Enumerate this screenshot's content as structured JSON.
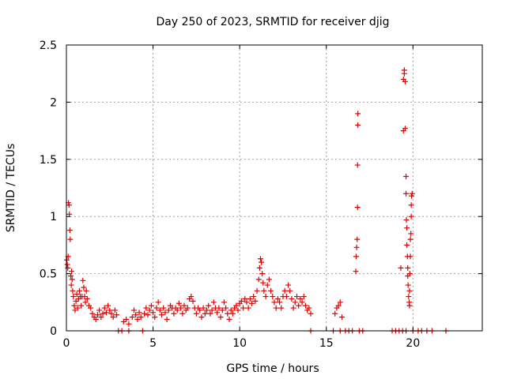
{
  "chart_data": {
    "type": "scatter",
    "title": "Day 250 of 2023, SRMTID for receiver djig",
    "xlabel": "GPS time / hours",
    "ylabel": "SRMTID / TECUs",
    "xlim": [
      0,
      24
    ],
    "ylim": [
      0,
      2.5
    ],
    "xticks": [
      0,
      5,
      10,
      15,
      20
    ],
    "xtick_labels": [
      "0",
      "5",
      "10",
      "15",
      "20"
    ],
    "yticks": [
      0,
      0.5,
      1,
      1.5,
      2,
      2.5
    ],
    "ytick_labels": [
      "0",
      "0.5",
      "1",
      "1.5",
      "2",
      "2.5"
    ],
    "grid": true,
    "marker": "+",
    "color": "#e00000",
    "series": [
      {
        "name": "SRMTID",
        "points": [
          [
            0.02,
            0.62
          ],
          [
            0.05,
            0.58
          ],
          [
            0.08,
            0.55
          ],
          [
            0.1,
            0.65
          ],
          [
            0.12,
            1.12
          ],
          [
            0.15,
            1.1
          ],
          [
            0.17,
            1.02
          ],
          [
            0.2,
            0.88
          ],
          [
            0.22,
            0.8
          ],
          [
            0.25,
            0.48
          ],
          [
            0.28,
            0.4
          ],
          [
            0.3,
            0.52
          ],
          [
            0.33,
            0.45
          ],
          [
            0.36,
            0.35
          ],
          [
            0.4,
            0.3
          ],
          [
            0.45,
            0.22
          ],
          [
            0.5,
            0.18
          ],
          [
            0.55,
            0.26
          ],
          [
            0.6,
            0.32
          ],
          [
            0.65,
            0.2
          ],
          [
            0.7,
            0.28
          ],
          [
            0.75,
            0.35
          ],
          [
            0.8,
            0.3
          ],
          [
            0.85,
            0.22
          ],
          [
            0.9,
            0.3
          ],
          [
            0.95,
            0.44
          ],
          [
            1.0,
            0.38
          ],
          [
            1.05,
            0.3
          ],
          [
            1.1,
            0.25
          ],
          [
            1.15,
            0.35
          ],
          [
            1.2,
            0.28
          ],
          [
            1.3,
            0.22
          ],
          [
            1.4,
            0.2
          ],
          [
            1.5,
            0.15
          ],
          [
            1.6,
            0.12
          ],
          [
            1.7,
            0.1
          ],
          [
            1.8,
            0.14
          ],
          [
            1.9,
            0.18
          ],
          [
            2.0,
            0.12
          ],
          [
            2.1,
            0.15
          ],
          [
            2.2,
            0.2
          ],
          [
            2.3,
            0.16
          ],
          [
            2.4,
            0.22
          ],
          [
            2.5,
            0.18
          ],
          [
            2.6,
            0.15
          ],
          [
            2.7,
            0.12
          ],
          [
            2.8,
            0.18
          ],
          [
            2.9,
            0.14
          ],
          [
            3.0,
            0.0
          ],
          [
            3.2,
            0.0
          ],
          [
            3.3,
            0.08
          ],
          [
            3.45,
            0.1
          ],
          [
            3.6,
            0.06
          ],
          [
            3.6,
            0.0
          ],
          [
            3.8,
            0.12
          ],
          [
            3.9,
            0.18
          ],
          [
            4.0,
            0.14
          ],
          [
            4.1,
            0.1
          ],
          [
            4.2,
            0.16
          ],
          [
            4.3,
            0.12
          ],
          [
            4.4,
            0.0
          ],
          [
            4.5,
            0.15
          ],
          [
            4.6,
            0.2
          ],
          [
            4.7,
            0.14
          ],
          [
            4.8,
            0.18
          ],
          [
            4.9,
            0.22
          ],
          [
            5.0,
            0.16
          ],
          [
            5.1,
            0.12
          ],
          [
            5.2,
            0.2
          ],
          [
            5.3,
            0.25
          ],
          [
            5.4,
            0.18
          ],
          [
            5.5,
            0.14
          ],
          [
            5.6,
            0.2
          ],
          [
            5.7,
            0.16
          ],
          [
            5.8,
            0.1
          ],
          [
            5.9,
            0.18
          ],
          [
            6.0,
            0.22
          ],
          [
            6.1,
            0.2
          ],
          [
            6.2,
            0.15
          ],
          [
            6.3,
            0.2
          ],
          [
            6.4,
            0.18
          ],
          [
            6.5,
            0.24
          ],
          [
            6.6,
            0.2
          ],
          [
            6.7,
            0.15
          ],
          [
            6.8,
            0.22
          ],
          [
            6.9,
            0.18
          ],
          [
            7.0,
            0.2
          ],
          [
            7.1,
            0.28
          ],
          [
            7.2,
            0.3
          ],
          [
            7.3,
            0.26
          ],
          [
            7.4,
            0.2
          ],
          [
            7.5,
            0.15
          ],
          [
            7.6,
            0.2
          ],
          [
            7.7,
            0.18
          ],
          [
            7.8,
            0.12
          ],
          [
            7.9,
            0.2
          ],
          [
            8.0,
            0.15
          ],
          [
            8.1,
            0.18
          ],
          [
            8.2,
            0.22
          ],
          [
            8.3,
            0.15
          ],
          [
            8.4,
            0.18
          ],
          [
            8.5,
            0.25
          ],
          [
            8.6,
            0.2
          ],
          [
            8.7,
            0.16
          ],
          [
            8.8,
            0.2
          ],
          [
            8.9,
            0.12
          ],
          [
            9.0,
            0.18
          ],
          [
            9.1,
            0.25
          ],
          [
            9.2,
            0.2
          ],
          [
            9.3,
            0.15
          ],
          [
            9.4,
            0.1
          ],
          [
            9.5,
            0.18
          ],
          [
            9.6,
            0.15
          ],
          [
            9.7,
            0.2
          ],
          [
            9.8,
            0.22
          ],
          [
            9.9,
            0.18
          ],
          [
            10.0,
            0.24
          ],
          [
            10.1,
            0.26
          ],
          [
            10.2,
            0.2
          ],
          [
            10.3,
            0.28
          ],
          [
            10.4,
            0.25
          ],
          [
            10.5,
            0.2
          ],
          [
            10.6,
            0.28
          ],
          [
            10.7,
            0.24
          ],
          [
            10.8,
            0.3
          ],
          [
            10.9,
            0.26
          ],
          [
            11.0,
            0.35
          ],
          [
            11.1,
            0.45
          ],
          [
            11.15,
            0.55
          ],
          [
            11.2,
            0.63
          ],
          [
            11.25,
            0.6
          ],
          [
            11.3,
            0.5
          ],
          [
            11.35,
            0.42
          ],
          [
            11.4,
            0.35
          ],
          [
            11.5,
            0.3
          ],
          [
            11.6,
            0.4
          ],
          [
            11.7,
            0.45
          ],
          [
            11.8,
            0.35
          ],
          [
            11.9,
            0.3
          ],
          [
            12.0,
            0.25
          ],
          [
            12.1,
            0.2
          ],
          [
            12.2,
            0.28
          ],
          [
            12.3,
            0.25
          ],
          [
            12.4,
            0.2
          ],
          [
            12.5,
            0.3
          ],
          [
            12.6,
            0.35
          ],
          [
            12.7,
            0.3
          ],
          [
            12.8,
            0.4
          ],
          [
            12.9,
            0.35
          ],
          [
            13.0,
            0.28
          ],
          [
            13.1,
            0.2
          ],
          [
            13.2,
            0.25
          ],
          [
            13.3,
            0.3
          ],
          [
            13.4,
            0.22
          ],
          [
            13.5,
            0.28
          ],
          [
            13.6,
            0.25
          ],
          [
            13.7,
            0.3
          ],
          [
            13.8,
            0.22
          ],
          [
            13.9,
            0.18
          ],
          [
            14.0,
            0.2
          ],
          [
            14.1,
            0.15
          ],
          [
            14.1,
            0.0
          ],
          [
            15.4,
            0.0
          ],
          [
            15.5,
            0.15
          ],
          [
            15.6,
            0.2
          ],
          [
            15.7,
            0.22
          ],
          [
            15.8,
            0.25
          ],
          [
            15.8,
            0.0
          ],
          [
            15.9,
            0.12
          ],
          [
            16.1,
            0.0
          ],
          [
            16.3,
            0.0
          ],
          [
            16.5,
            0.0
          ],
          [
            16.7,
            0.52
          ],
          [
            16.72,
            0.65
          ],
          [
            16.75,
            0.73
          ],
          [
            16.78,
            0.8
          ],
          [
            16.8,
            1.08
          ],
          [
            16.8,
            1.45
          ],
          [
            16.82,
            1.8
          ],
          [
            16.82,
            1.9
          ],
          [
            16.9,
            0.0
          ],
          [
            17.1,
            0.0
          ],
          [
            18.8,
            0.0
          ],
          [
            19.0,
            0.0
          ],
          [
            19.2,
            0.0
          ],
          [
            19.3,
            0.55
          ],
          [
            19.4,
            0.0
          ],
          [
            19.45,
            1.75
          ],
          [
            19.45,
            2.2
          ],
          [
            19.5,
            2.25
          ],
          [
            19.5,
            2.28
          ],
          [
            19.55,
            2.18
          ],
          [
            19.55,
            1.77
          ],
          [
            19.6,
            1.35
          ],
          [
            19.6,
            1.2
          ],
          [
            19.62,
            0.97
          ],
          [
            19.65,
            0.9
          ],
          [
            19.65,
            0.75
          ],
          [
            19.68,
            0.65
          ],
          [
            19.7,
            0.55
          ],
          [
            19.7,
            0.48
          ],
          [
            19.72,
            0.4
          ],
          [
            19.75,
            0.3
          ],
          [
            19.78,
            0.25
          ],
          [
            19.8,
            0.22
          ],
          [
            19.8,
            0.35
          ],
          [
            19.82,
            0.5
          ],
          [
            19.85,
            0.65
          ],
          [
            19.85,
            0.8
          ],
          [
            19.88,
            0.85
          ],
          [
            19.9,
            1.0
          ],
          [
            19.9,
            1.1
          ],
          [
            19.92,
            1.18
          ],
          [
            19.95,
            1.2
          ],
          [
            19.6,
            0.0
          ],
          [
            20.0,
            0.0
          ],
          [
            20.3,
            0.0
          ],
          [
            20.5,
            0.0
          ],
          [
            20.8,
            0.0
          ],
          [
            21.1,
            0.0
          ],
          [
            21.9,
            0.0
          ]
        ]
      }
    ]
  }
}
